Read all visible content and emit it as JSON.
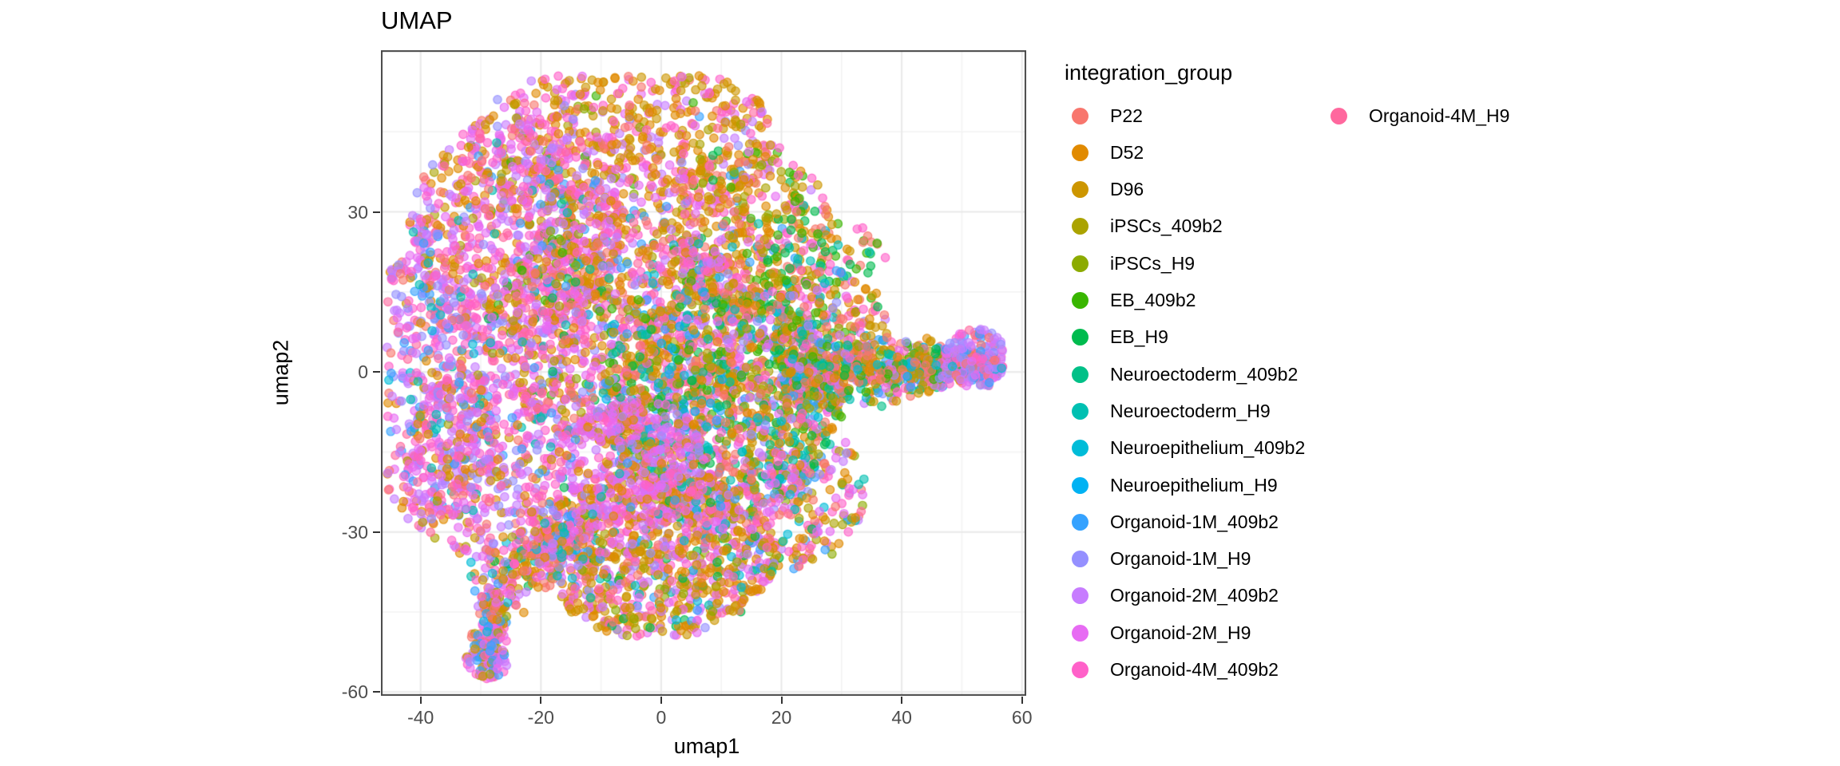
{
  "title": "UMAP",
  "axes": {
    "x": {
      "label": "umap1",
      "major": [
        -40,
        -20,
        0,
        20,
        40,
        60
      ],
      "minor": [
        -30,
        -10,
        10,
        30,
        50
      ]
    },
    "y": {
      "label": "umap2",
      "major": [
        30,
        0,
        -30,
        -60
      ],
      "minor": [
        45,
        15,
        -15,
        -45
      ]
    }
  },
  "legend": {
    "title": "integration_group",
    "column_break": 16
  },
  "style": {
    "panel_border": "#464646",
    "grid_major": "#E9E9E9",
    "grid_minor": "#F3F3F3",
    "tick_text": "#4D4D4D"
  },
  "chart_data": {
    "type": "scatter",
    "title": "UMAP",
    "xlabel": "umap1",
    "ylabel": "umap2",
    "xlim": [
      -46.6,
      60.7
    ],
    "ylim": [
      -60.7,
      60.3
    ],
    "legend_position": "right",
    "grid": true,
    "point": {
      "radius": 5.2,
      "opacity": 0.6
    },
    "seed": 42,
    "groups": [
      {
        "name": "P22",
        "color": "#F8766D"
      },
      {
        "name": "D52",
        "color": "#E18A00"
      },
      {
        "name": "D96",
        "color": "#CD9600"
      },
      {
        "name": "iPSCs_409b2",
        "color": "#ABA300"
      },
      {
        "name": "iPSCs_H9",
        "color": "#8CAB00"
      },
      {
        "name": "EB_409b2",
        "color": "#39B600"
      },
      {
        "name": "EB_H9",
        "color": "#00BB4E"
      },
      {
        "name": "Neuroectoderm_409b2",
        "color": "#00C087"
      },
      {
        "name": "Neuroectoderm_H9",
        "color": "#00C0B2"
      },
      {
        "name": "Neuroepithelium_409b2",
        "color": "#00BCD8"
      },
      {
        "name": "Neuroepithelium_H9",
        "color": "#00B2F3"
      },
      {
        "name": "Organoid-1M_409b2",
        "color": "#35A2FF"
      },
      {
        "name": "Organoid-1M_H9",
        "color": "#9590FF"
      },
      {
        "name": "Organoid-2M_409b2",
        "color": "#C77CFF"
      },
      {
        "name": "Organoid-2M_H9",
        "color": "#E76BF3"
      },
      {
        "name": "Organoid-4M_409b2",
        "color": "#FF61C9"
      },
      {
        "name": "Organoid-4M_H9",
        "color": "#FF689E"
      }
    ],
    "clusters": [
      {
        "k": "g",
        "x": -6,
        "y": 43,
        "sx": 13,
        "sy": 7.5,
        "n": 650,
        "mix": [
          1,
          24,
          2,
          20,
          15,
          15,
          14,
          11,
          13,
          8,
          16,
          5,
          0,
          6,
          12,
          3,
          3,
          4,
          4,
          2,
          5,
          1,
          11,
          1
        ]
      },
      {
        "k": "g",
        "x": -24,
        "y": 26,
        "sx": 9,
        "sy": 11,
        "n": 750,
        "mix": [
          15,
          22,
          14,
          16,
          13,
          12,
          16,
          8,
          1,
          12,
          2,
          8,
          0,
          5,
          12,
          6,
          3,
          3,
          11,
          3,
          8,
          3,
          5,
          2
        ]
      },
      {
        "k": "g",
        "x": -38,
        "y": -2,
        "sx": 5.5,
        "sy": 14,
        "n": 520,
        "mix": [
          15,
          20,
          13,
          16,
          14,
          14,
          12,
          12,
          16,
          10,
          11,
          8,
          0,
          6,
          1,
          6,
          8,
          3,
          9,
          3,
          2,
          2
        ]
      },
      {
        "k": "g",
        "x": 14,
        "y": 27,
        "sx": 7,
        "sy": 8,
        "n": 380,
        "mix": [
          1,
          22,
          0,
          12,
          2,
          12,
          15,
          10,
          5,
          6,
          6,
          5,
          3,
          6,
          4,
          5,
          13,
          5,
          14,
          6,
          9,
          3,
          11,
          3
        ]
      },
      {
        "k": "g",
        "x": 26,
        "y": 21,
        "sx": 6,
        "sy": 6,
        "n": 120,
        "mix": [
          5,
          20,
          6,
          15,
          0,
          20,
          1,
          15,
          8,
          10,
          2,
          8,
          15,
          6,
          3,
          6
        ]
      },
      {
        "k": "g",
        "x": -7,
        "y": 8,
        "sx": 11,
        "sy": 11,
        "n": 1150,
        "mix": [
          15,
          16,
          14,
          14,
          1,
          14,
          2,
          10,
          0,
          8,
          13,
          8,
          16,
          6,
          3,
          5,
          4,
          3,
          12,
          4,
          6,
          3,
          8,
          2,
          9,
          2,
          11,
          3,
          5,
          2
        ]
      },
      {
        "k": "g",
        "x": 10,
        "y": -6,
        "sx": 10,
        "sy": 11,
        "n": 850,
        "mix": [
          0,
          14,
          1,
          10,
          2,
          8,
          5,
          8,
          6,
          8,
          7,
          7,
          8,
          6,
          9,
          5,
          10,
          5,
          11,
          5,
          3,
          6,
          4,
          5,
          15,
          5,
          14,
          4,
          13,
          2,
          12,
          2
        ]
      },
      {
        "k": "g",
        "x": 24,
        "y": 6,
        "sx": 7,
        "sy": 7,
        "n": 300,
        "mix": [
          0,
          14,
          15,
          12,
          1,
          12,
          5,
          6,
          6,
          6,
          13,
          6,
          14,
          8,
          12,
          4,
          2,
          8,
          8,
          4,
          9,
          3,
          11,
          3,
          3,
          4
        ]
      },
      {
        "k": "w",
        "x0": 20,
        "x1": 56,
        "y": 1,
        "s0": 13,
        "s1": 1.8,
        "n": 720,
        "mix": [
          0,
          18,
          1,
          12,
          2,
          8,
          5,
          7,
          6,
          7,
          7,
          5,
          8,
          4,
          9,
          4,
          10,
          3,
          3,
          5,
          4,
          4,
          15,
          8,
          14,
          5,
          13,
          4,
          11,
          4,
          12,
          2
        ]
      },
      {
        "k": "g",
        "x": 52.5,
        "y": 2.5,
        "sx": 2.8,
        "sy": 2.8,
        "n": 150,
        "mix": [
          13,
          30,
          11,
          15,
          12,
          10,
          14,
          12,
          15,
          14,
          16,
          6,
          9,
          5,
          0,
          8
        ]
      },
      {
        "k": "g",
        "x": 18,
        "y": -22,
        "sx": 8,
        "sy": 8,
        "n": 420,
        "mix": [
          15,
          16,
          14,
          12,
          1,
          14,
          0,
          10,
          2,
          8,
          13,
          6,
          16,
          5,
          8,
          6,
          6,
          5,
          9,
          4,
          3,
          5,
          12,
          3,
          11,
          3,
          4,
          3
        ]
      },
      {
        "k": "g",
        "x": -1,
        "y": -34,
        "sx": 10,
        "sy": 8,
        "n": 880,
        "mix": [
          1,
          20,
          2,
          18,
          14,
          12,
          15,
          10,
          0,
          6,
          3,
          6,
          13,
          6,
          16,
          4,
          4,
          3,
          12,
          3,
          6,
          3,
          8,
          3,
          11,
          3,
          9,
          3
        ]
      },
      {
        "k": "g",
        "x": -4,
        "y": -17,
        "sx": 6,
        "sy": 6,
        "n": 360,
        "mix": [
          14,
          40,
          15,
          18,
          13,
          12,
          1,
          8,
          12,
          6,
          16,
          5,
          11,
          3,
          2,
          5,
          8,
          3
        ]
      },
      {
        "k": "s",
        "ax": -12,
        "ay": -27,
        "bx": -26,
        "by": -38,
        "sd": 3,
        "n": 260,
        "mix": [
          1,
          16,
          0,
          8,
          15,
          16,
          14,
          12,
          13,
          10,
          8,
          6,
          9,
          5,
          6,
          4,
          2,
          8,
          3,
          4,
          11,
          4,
          12,
          4
        ]
      },
      {
        "k": "g",
        "x": -29,
        "y": -17,
        "sx": 7,
        "sy": 9,
        "n": 420,
        "mix": [
          15,
          20,
          13,
          14,
          14,
          14,
          1,
          10,
          0,
          6,
          12,
          8,
          11,
          5,
          16,
          6,
          8,
          4,
          2,
          5,
          3,
          3
        ]
      },
      {
        "k": "s",
        "ax": -27,
        "ay": -41,
        "bx": -29,
        "by": -53,
        "sd": 1.4,
        "n": 150,
        "mix": [
          15,
          18,
          14,
          14,
          1,
          12,
          3,
          8,
          4,
          4,
          11,
          8,
          13,
          8,
          0,
          8,
          2,
          6,
          9,
          4,
          12,
          4
        ]
      },
      {
        "k": "g",
        "x": -29,
        "y": -54,
        "sx": 1.8,
        "sy": 1.8,
        "n": 70,
        "mix": [
          14,
          25,
          15,
          20,
          11,
          15,
          3,
          12,
          2,
          8,
          12,
          8,
          13,
          6
        ]
      }
    ]
  }
}
